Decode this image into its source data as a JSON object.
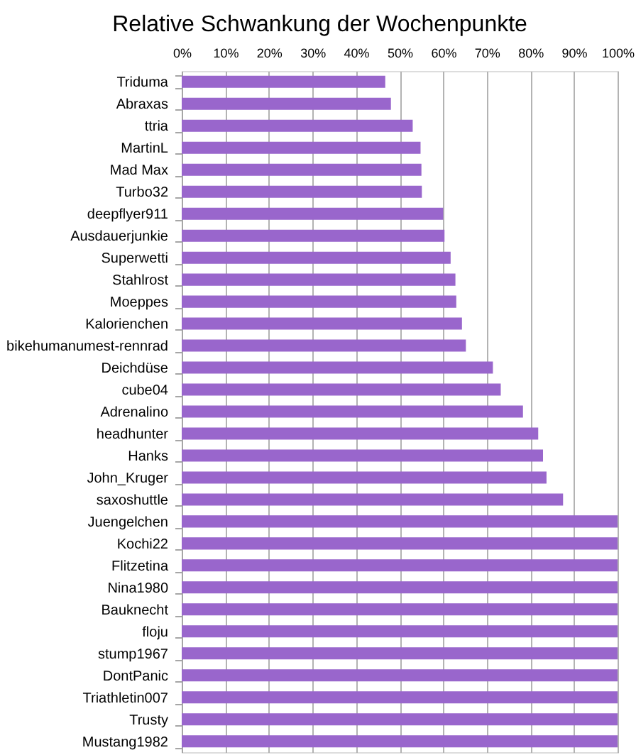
{
  "chart_data": {
    "type": "bar",
    "orientation": "horizontal",
    "title": "Relative Schwankung der Wochenpunkte",
    "categories": [
      "Triduma",
      "Abraxas",
      "ttria",
      "MartinL",
      "Mad Max",
      "Turbo32",
      "deepflyer911",
      "Ausdauerjunkie",
      "Superwetti",
      "Stahlrost",
      "Moeppes",
      "Kalorienchen",
      "bikehumanumest-rennrad",
      "Deichdüse",
      "cube04",
      "Adrenalino",
      "headhunter",
      "Hanks",
      "John_Kruger",
      "saxoshuttle",
      "Juengelchen",
      "Kochi22",
      "Flitzetina",
      "Nina1980",
      "Bauknecht",
      "floju",
      "stump1967",
      "DontPanic",
      "Triathletin007",
      "Trusty",
      "Mustang1982"
    ],
    "values": [
      46.7,
      48,
      53,
      54.8,
      55,
      55.1,
      60,
      60.3,
      61.7,
      62.8,
      63,
      64.3,
      65.2,
      71.4,
      73.2,
      78.3,
      81.8,
      82.9,
      83.7,
      87.5,
      100,
      100,
      100,
      100,
      100,
      100,
      100,
      100,
      100,
      100,
      100
    ],
    "color": "#9966cc",
    "xlim": [
      0,
      100
    ],
    "xticks": [
      {
        "value": 0,
        "label": "0%"
      },
      {
        "value": 10,
        "label": "10%"
      },
      {
        "value": 20,
        "label": "20%"
      },
      {
        "value": 30,
        "label": "30%"
      },
      {
        "value": 40,
        "label": "40%"
      },
      {
        "value": 50,
        "label": "50%"
      },
      {
        "value": 60,
        "label": "60%"
      },
      {
        "value": 70,
        "label": "70%"
      },
      {
        "value": 80,
        "label": "80%"
      },
      {
        "value": 90,
        "label": "90%"
      },
      {
        "value": 100,
        "label": "100%"
      }
    ],
    "grid": "x"
  }
}
